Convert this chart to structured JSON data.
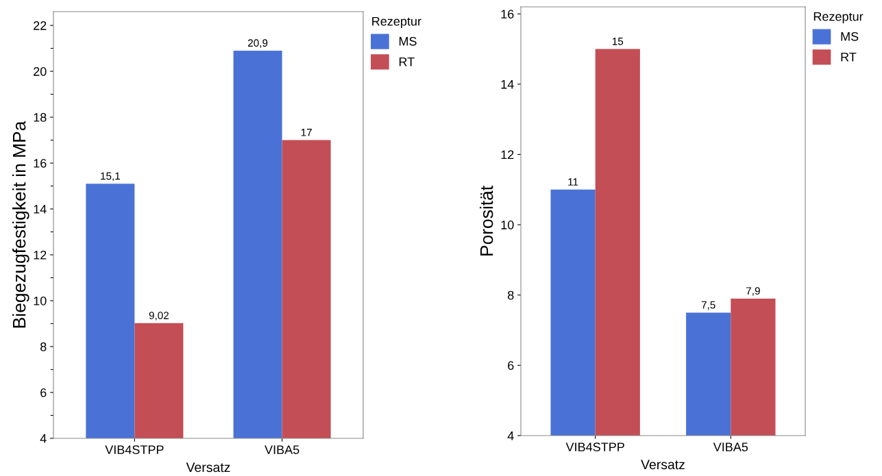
{
  "chart_data": [
    {
      "type": "bar",
      "xlabel": "Versatz",
      "ylabel": "Biegezugfestigkeit in MPa",
      "legend_title": "Rezeptur",
      "legend": "right",
      "grid": false,
      "categories": [
        "VIB4STPP",
        "VIBA5"
      ],
      "series": [
        {
          "name": "MS",
          "color": "#4a72d6",
          "values": [
            15.1,
            20.9
          ],
          "value_labels": [
            "15,1",
            "20,9"
          ]
        },
        {
          "name": "RT",
          "color": "#c44e55",
          "values": [
            9.02,
            17
          ],
          "value_labels": [
            "9,02",
            "17"
          ]
        }
      ],
      "ylim": [
        4,
        22.6
      ],
      "yticks": [
        4,
        {
          "value": 5,
          "label": null
        },
        6,
        {
          "value": 7,
          "label": null
        },
        8,
        {
          "value": 9,
          "label": null
        },
        10,
        {
          "value": 11,
          "label": null
        },
        12,
        {
          "value": 13,
          "label": null
        },
        14,
        {
          "value": 15,
          "label": null
        },
        16,
        {
          "value": 17,
          "label": null
        },
        18,
        {
          "value": 19,
          "label": null
        },
        20,
        {
          "value": 21,
          "label": null
        },
        22
      ]
    },
    {
      "type": "bar",
      "xlabel": "Versatz",
      "ylabel": "Porosität",
      "legend_title": "Rezeptur",
      "legend": "right",
      "grid": false,
      "categories": [
        "VIB4STPP",
        "VIBA5"
      ],
      "series": [
        {
          "name": "MS",
          "color": "#4a72d6",
          "values": [
            11,
            7.5
          ],
          "value_labels": [
            "11",
            "7,5"
          ]
        },
        {
          "name": "RT",
          "color": "#c44e55",
          "values": [
            15,
            7.9
          ],
          "value_labels": [
            "15",
            "7,9"
          ]
        }
      ],
      "ylim": [
        4,
        16.2
      ],
      "yticks": [
        4,
        6,
        8,
        10,
        12,
        14,
        16
      ]
    }
  ]
}
